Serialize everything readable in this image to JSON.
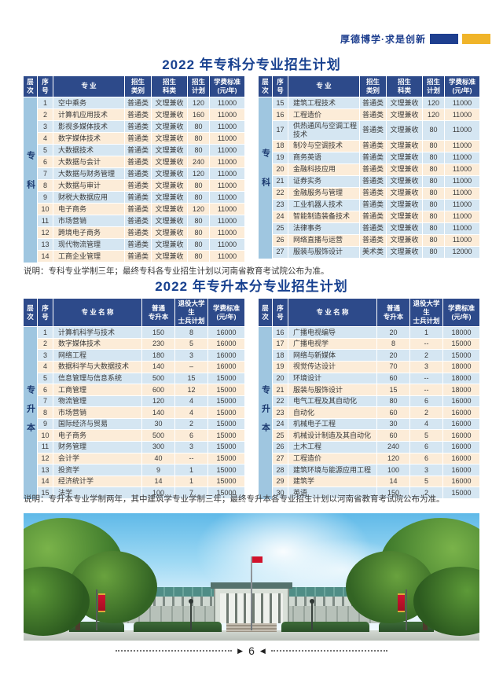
{
  "header": {
    "motto": "厚德博学·求是创新",
    "brand_navy": "#1e3f8f",
    "brand_gold": "#f0b429"
  },
  "section1": {
    "title": "2022 年专科分专业招生计划",
    "note": "说明：专科专业学制三年；最终专科各专业招生计划以河南省教育考试院公布为准。",
    "level": "专科",
    "columns": {
      "level": [
        "层",
        "次"
      ],
      "no": [
        "序",
        "号"
      ],
      "major": [
        "专  业"
      ],
      "cat": [
        "招生",
        "类别"
      ],
      "subj": [
        "招生",
        "科类"
      ],
      "plan": [
        "招生",
        "计划"
      ],
      "fee": [
        "学费标准",
        "(元/年)"
      ]
    },
    "left_rows": [
      {
        "no": "1",
        "major": "空中乘务",
        "cat": "普通类",
        "subj": "文理兼收",
        "plan": "120",
        "fee": "11000"
      },
      {
        "no": "2",
        "major": "计算机应用技术",
        "cat": "普通类",
        "subj": "文理兼收",
        "plan": "160",
        "fee": "11000"
      },
      {
        "no": "3",
        "major": "影视多媒体技术",
        "cat": "普通类",
        "subj": "文理兼收",
        "plan": "80",
        "fee": "11000"
      },
      {
        "no": "4",
        "major": "数字媒体技术",
        "cat": "普通类",
        "subj": "文理兼收",
        "plan": "80",
        "fee": "11000"
      },
      {
        "no": "5",
        "major": "大数据技术",
        "cat": "普通类",
        "subj": "文理兼收",
        "plan": "80",
        "fee": "11000"
      },
      {
        "no": "6",
        "major": "大数据与会计",
        "cat": "普通类",
        "subj": "文理兼收",
        "plan": "240",
        "fee": "11000"
      },
      {
        "no": "7",
        "major": "大数据与财务管理",
        "cat": "普通类",
        "subj": "文理兼收",
        "plan": "120",
        "fee": "11000"
      },
      {
        "no": "8",
        "major": "大数据与审计",
        "cat": "普通类",
        "subj": "文理兼收",
        "plan": "80",
        "fee": "11000"
      },
      {
        "no": "9",
        "major": "财税大数据应用",
        "cat": "普通类",
        "subj": "文理兼收",
        "plan": "80",
        "fee": "11000"
      },
      {
        "no": "10",
        "major": "电子商务",
        "cat": "普通类",
        "subj": "文理兼收",
        "plan": "120",
        "fee": "11000"
      },
      {
        "no": "11",
        "major": "市场营销",
        "cat": "普通类",
        "subj": "文理兼收",
        "plan": "80",
        "fee": "11000"
      },
      {
        "no": "12",
        "major": "跨境电子商务",
        "cat": "普通类",
        "subj": "文理兼收",
        "plan": "80",
        "fee": "11000"
      },
      {
        "no": "13",
        "major": "现代物流管理",
        "cat": "普通类",
        "subj": "文理兼收",
        "plan": "80",
        "fee": "11000"
      },
      {
        "no": "14",
        "major": "工商企业管理",
        "cat": "普通类",
        "subj": "文理兼收",
        "plan": "80",
        "fee": "11000"
      }
    ],
    "right_rows": [
      {
        "no": "15",
        "major": "建筑工程技术",
        "cat": "普通类",
        "subj": "文理兼收",
        "plan": "120",
        "fee": "11000"
      },
      {
        "no": "16",
        "major": "工程造价",
        "cat": "普通类",
        "subj": "文理兼收",
        "plan": "120",
        "fee": "11000"
      },
      {
        "no": "17",
        "major": "供热通风与空调工程技术",
        "cat": "普通类",
        "subj": "文理兼收",
        "plan": "80",
        "fee": "11000"
      },
      {
        "no": "18",
        "major": "制冷与空调技术",
        "cat": "普通类",
        "subj": "文理兼收",
        "plan": "80",
        "fee": "11000"
      },
      {
        "no": "19",
        "major": "商务英语",
        "cat": "普通类",
        "subj": "文理兼收",
        "plan": "80",
        "fee": "11000"
      },
      {
        "no": "20",
        "major": "金融科技应用",
        "cat": "普通类",
        "subj": "文理兼收",
        "plan": "80",
        "fee": "11000"
      },
      {
        "no": "21",
        "major": "证券实务",
        "cat": "普通类",
        "subj": "文理兼收",
        "plan": "80",
        "fee": "11000"
      },
      {
        "no": "22",
        "major": "金融服务与管理",
        "cat": "普通类",
        "subj": "文理兼收",
        "plan": "80",
        "fee": "11000"
      },
      {
        "no": "23",
        "major": "工业机器人技术",
        "cat": "普通类",
        "subj": "文理兼收",
        "plan": "80",
        "fee": "11000"
      },
      {
        "no": "24",
        "major": "智能制造装备技术",
        "cat": "普通类",
        "subj": "文理兼收",
        "plan": "80",
        "fee": "11000"
      },
      {
        "no": "25",
        "major": "法律事务",
        "cat": "普通类",
        "subj": "文理兼收",
        "plan": "80",
        "fee": "11000"
      },
      {
        "no": "26",
        "major": "网络直播与运营",
        "cat": "普通类",
        "subj": "文理兼收",
        "plan": "80",
        "fee": "11000"
      },
      {
        "no": "27",
        "major": "服装与服饰设计",
        "cat": "美术类",
        "subj": "文理兼收",
        "plan": "80",
        "fee": "12000"
      }
    ]
  },
  "section2": {
    "title": "2022 年专升本分专业招生计划",
    "note": "说明：专升本专业学制两年，其中建筑学专业学制三年；最终专升本各专业招生计划以河南省教育考试院公布为准。",
    "level": "专升本",
    "columns": {
      "level": [
        "层",
        "次"
      ],
      "no": [
        "序",
        "号"
      ],
      "major": [
        "专 业 名 称"
      ],
      "plan": [
        "普通",
        "专升本"
      ],
      "vet": [
        "退役大学生",
        "士兵计划"
      ],
      "fee": [
        "学费标准",
        "(元/年)"
      ]
    },
    "left_rows": [
      {
        "no": "1",
        "major": "计算机科学与技术",
        "plan": "150",
        "vet": "8",
        "fee": "16000"
      },
      {
        "no": "2",
        "major": "数字媒体技术",
        "plan": "230",
        "vet": "5",
        "fee": "16000"
      },
      {
        "no": "3",
        "major": "网络工程",
        "plan": "180",
        "vet": "3",
        "fee": "16000"
      },
      {
        "no": "4",
        "major": "数据科学与大数据技术",
        "plan": "140",
        "vet": "–",
        "fee": "16000"
      },
      {
        "no": "5",
        "major": "信息管理与信息系统",
        "plan": "500",
        "vet": "15",
        "fee": "15000"
      },
      {
        "no": "6",
        "major": "工商管理",
        "plan": "600",
        "vet": "12",
        "fee": "15000"
      },
      {
        "no": "7",
        "major": "物流管理",
        "plan": "120",
        "vet": "4",
        "fee": "15000"
      },
      {
        "no": "8",
        "major": "市场营销",
        "plan": "140",
        "vet": "4",
        "fee": "15000"
      },
      {
        "no": "9",
        "major": "国际经济与贸易",
        "plan": "30",
        "vet": "2",
        "fee": "15000"
      },
      {
        "no": "10",
        "major": "电子商务",
        "plan": "500",
        "vet": "6",
        "fee": "15000"
      },
      {
        "no": "11",
        "major": "财务管理",
        "plan": "300",
        "vet": "3",
        "fee": "15000"
      },
      {
        "no": "12",
        "major": "会计学",
        "plan": "40",
        "vet": "--",
        "fee": "15000"
      },
      {
        "no": "13",
        "major": "投资学",
        "plan": "9",
        "vet": "1",
        "fee": "15000"
      },
      {
        "no": "14",
        "major": "经济统计学",
        "plan": "14",
        "vet": "1",
        "fee": "15000"
      },
      {
        "no": "15",
        "major": "法学",
        "plan": "100",
        "vet": "7",
        "fee": "15000"
      }
    ],
    "right_rows": [
      {
        "no": "16",
        "major": "广播电视编导",
        "plan": "20",
        "vet": "1",
        "fee": "18000"
      },
      {
        "no": "17",
        "major": "广播电视学",
        "plan": "8",
        "vet": "--",
        "fee": "15000"
      },
      {
        "no": "18",
        "major": "网络与新媒体",
        "plan": "20",
        "vet": "2",
        "fee": "15000"
      },
      {
        "no": "19",
        "major": "视觉传达设计",
        "plan": "70",
        "vet": "3",
        "fee": "18000"
      },
      {
        "no": "20",
        "major": "环境设计",
        "plan": "60",
        "vet": "--",
        "fee": "18000"
      },
      {
        "no": "21",
        "major": "服装与服饰设计",
        "plan": "15",
        "vet": "--",
        "fee": "18000"
      },
      {
        "no": "22",
        "major": "电气工程及其自动化",
        "plan": "80",
        "vet": "6",
        "fee": "16000"
      },
      {
        "no": "23",
        "major": "自动化",
        "plan": "60",
        "vet": "2",
        "fee": "16000"
      },
      {
        "no": "24",
        "major": "机械电子工程",
        "plan": "30",
        "vet": "4",
        "fee": "16000"
      },
      {
        "no": "25",
        "major": "机械设计制造及其自动化",
        "plan": "60",
        "vet": "5",
        "fee": "16000"
      },
      {
        "no": "26",
        "major": "土木工程",
        "plan": "240",
        "vet": "6",
        "fee": "16000"
      },
      {
        "no": "27",
        "major": "工程造价",
        "plan": "120",
        "vet": "6",
        "fee": "16000"
      },
      {
        "no": "28",
        "major": "建筑环境与能源应用工程",
        "plan": "100",
        "vet": "3",
        "fee": "16000"
      },
      {
        "no": "29",
        "major": "建筑学",
        "plan": "14",
        "vet": "5",
        "fee": "16000"
      },
      {
        "no": "30",
        "major": "英语",
        "plan": "150",
        "vet": "2",
        "fee": "15000"
      }
    ]
  },
  "footer": {
    "page": "6"
  }
}
